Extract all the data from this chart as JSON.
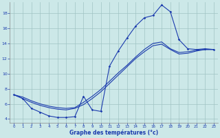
{
  "xlabel": "Graphe des températures (°c)",
  "bg_color": "#cce8e8",
  "line_color": "#1a3aad",
  "grid_color": "#a0c4c4",
  "xlim": [
    -0.5,
    23.5
  ],
  "ylim": [
    3.5,
    19.5
  ],
  "yticks": [
    4,
    6,
    8,
    10,
    12,
    14,
    16,
    18
  ],
  "xticks": [
    0,
    1,
    2,
    3,
    4,
    5,
    6,
    7,
    8,
    9,
    10,
    11,
    12,
    13,
    14,
    15,
    16,
    17,
    18,
    19,
    20,
    21,
    22,
    23
  ],
  "line1_x": [
    0,
    1,
    2,
    3,
    4,
    5,
    6,
    7,
    8,
    9,
    10,
    11,
    12,
    13,
    14,
    15,
    16,
    17,
    18,
    19,
    20,
    21,
    22,
    23
  ],
  "line1_y": [
    7.2,
    6.7,
    5.4,
    4.9,
    4.4,
    4.2,
    4.2,
    4.3,
    7.0,
    5.2,
    5.0,
    11.0,
    13.0,
    14.7,
    16.3,
    17.4,
    17.7,
    19.1,
    18.2,
    14.5,
    13.3,
    13.2,
    13.3,
    13.2
  ],
  "line2_x": [
    0,
    1,
    2,
    3,
    4,
    5,
    6,
    7,
    8,
    9,
    10,
    11,
    12,
    13,
    14,
    15,
    16,
    17,
    18,
    19,
    20,
    21,
    22,
    23
  ],
  "line2_y": [
    7.2,
    6.7,
    6.2,
    5.8,
    5.5,
    5.3,
    5.2,
    5.4,
    5.9,
    6.7,
    7.6,
    8.7,
    9.8,
    10.9,
    12.0,
    12.9,
    13.7,
    13.9,
    13.2,
    12.6,
    12.7,
    13.0,
    13.2,
    13.2
  ],
  "line3_x": [
    0,
    1,
    2,
    3,
    4,
    5,
    6,
    7,
    8,
    9,
    10,
    11,
    12,
    13,
    14,
    15,
    16,
    17,
    18,
    19,
    20,
    21,
    22,
    23
  ],
  "line3_y": [
    7.2,
    6.9,
    6.4,
    6.0,
    5.7,
    5.5,
    5.4,
    5.5,
    6.2,
    7.0,
    7.9,
    9.0,
    10.1,
    11.1,
    12.2,
    13.2,
    14.0,
    14.2,
    13.3,
    12.8,
    12.9,
    13.1,
    13.2,
    13.2
  ]
}
